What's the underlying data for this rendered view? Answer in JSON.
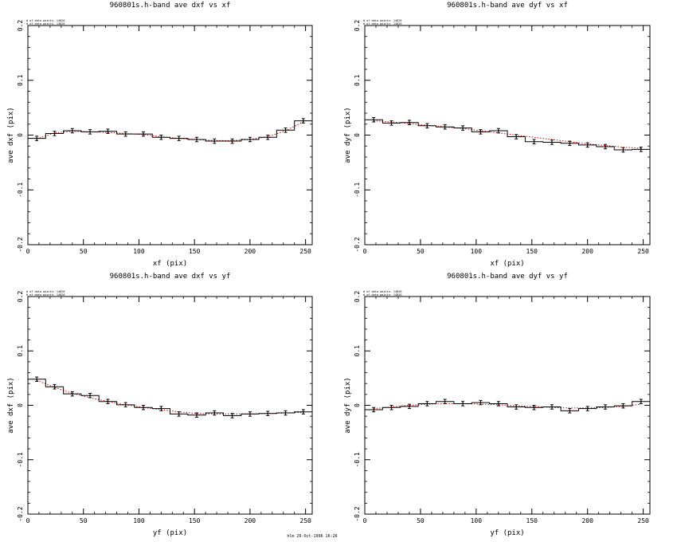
{
  "chart_data": [
    {
      "type": "histogram-step",
      "title": "960801s.h-band ave dxf vs xf",
      "xlabel": "xf (pix)",
      "ylabel": "ave dxf (pix)",
      "xlim": [
        0,
        256
      ],
      "ylim": [
        -0.2,
        0.2
      ],
      "xticks": [
        0,
        50,
        100,
        150,
        200,
        250
      ],
      "yticks": [
        -0.2,
        -0.1,
        0,
        0.1,
        0.2
      ],
      "notes": [
        "# of data points: 14826",
        "# of data points: 14826"
      ],
      "bin_width": 16,
      "values": [
        -0.006,
        0.003,
        0.008,
        0.006,
        0.007,
        0.002,
        0.002,
        -0.004,
        -0.006,
        -0.008,
        -0.011,
        -0.011,
        -0.008,
        -0.004,
        0.009,
        0.026
      ],
      "errors": [
        0.004,
        0.004,
        0.004,
        0.004,
        0.004,
        0.004,
        0.004,
        0.004,
        0.004,
        0.004,
        0.004,
        0.004,
        0.004,
        0.004,
        0.004,
        0.004
      ],
      "fit": [
        -0.007,
        0.004,
        0.007,
        0.006,
        0.005,
        0.003,
        0.001,
        -0.003,
        -0.006,
        -0.008,
        -0.01,
        -0.01,
        -0.008,
        -0.003,
        0.008,
        0.024
      ]
    },
    {
      "type": "histogram-step",
      "title": "960801s.h-band ave dyf vs xf",
      "xlabel": "xf (pix)",
      "ylabel": "ave dyf (pix)",
      "xlim": [
        0,
        256
      ],
      "ylim": [
        -0.2,
        0.2
      ],
      "xticks": [
        0,
        50,
        100,
        150,
        200,
        250
      ],
      "yticks": [
        -0.2,
        -0.1,
        0,
        0.1,
        0.2
      ],
      "notes": [
        "# of data points: 14826",
        "# of data points: 14826"
      ],
      "bin_width": 16,
      "values": [
        0.028,
        0.022,
        0.023,
        0.017,
        0.015,
        0.013,
        0.006,
        0.008,
        -0.003,
        -0.012,
        -0.013,
        -0.015,
        -0.018,
        -0.021,
        -0.027,
        -0.026
      ],
      "errors": [
        0.004,
        0.004,
        0.004,
        0.004,
        0.004,
        0.004,
        0.004,
        0.004,
        0.004,
        0.004,
        0.004,
        0.004,
        0.004,
        0.004,
        0.004,
        0.004
      ],
      "fit": [
        0.026,
        0.024,
        0.021,
        0.018,
        0.015,
        0.012,
        0.008,
        0.004,
        0.0,
        -0.004,
        -0.008,
        -0.012,
        -0.016,
        -0.019,
        -0.022,
        -0.024
      ]
    },
    {
      "type": "histogram-step",
      "title": "960801s.h-band ave dxf vs yf",
      "xlabel": "yf (pix)",
      "ylabel": "ave dxf (pix)",
      "xlim": [
        0,
        256
      ],
      "ylim": [
        -0.2,
        0.2
      ],
      "xticks": [
        0,
        50,
        100,
        150,
        200,
        250
      ],
      "yticks": [
        -0.2,
        -0.1,
        0,
        0.1,
        0.2
      ],
      "notes": [
        "# of data points: 14826",
        "# of data points: 14826"
      ],
      "bin_width": 16,
      "values": [
        0.048,
        0.034,
        0.021,
        0.018,
        0.007,
        0.001,
        -0.004,
        -0.006,
        -0.016,
        -0.018,
        -0.014,
        -0.019,
        -0.016,
        -0.015,
        -0.014,
        -0.012
      ],
      "errors": [
        0.004,
        0.004,
        0.004,
        0.004,
        0.004,
        0.004,
        0.004,
        0.004,
        0.004,
        0.004,
        0.004,
        0.004,
        0.004,
        0.004,
        0.004,
        0.004
      ],
      "fit": [
        0.046,
        0.033,
        0.022,
        0.014,
        0.007,
        0.001,
        -0.004,
        -0.008,
        -0.012,
        -0.015,
        -0.016,
        -0.016,
        -0.016,
        -0.015,
        -0.014,
        -0.013
      ]
    },
    {
      "type": "histogram-step",
      "title": "960801s.h-band ave dyf vs yf",
      "xlabel": "yf (pix)",
      "ylabel": "ave dyf (pix)",
      "xlim": [
        0,
        256
      ],
      "ylim": [
        -0.2,
        0.2
      ],
      "xticks": [
        0,
        50,
        100,
        150,
        200,
        250
      ],
      "yticks": [
        -0.2,
        -0.1,
        0,
        0.1,
        0.2
      ],
      "notes": [
        "# of data points: 14826",
        "# of data points: 14826"
      ],
      "bin_width": 16,
      "values": [
        -0.008,
        -0.004,
        -0.002,
        0.003,
        0.007,
        0.003,
        0.005,
        0.003,
        -0.003,
        -0.004,
        -0.003,
        -0.01,
        -0.006,
        -0.003,
        -0.001,
        0.007
      ],
      "errors": [
        0.004,
        0.004,
        0.004,
        0.004,
        0.004,
        0.004,
        0.004,
        0.004,
        0.004,
        0.004,
        0.004,
        0.004,
        0.004,
        0.004,
        0.004,
        0.004
      ],
      "fit": [
        -0.006,
        -0.003,
        0.0,
        0.002,
        0.003,
        0.003,
        0.002,
        0.001,
        -0.001,
        -0.002,
        -0.004,
        -0.005,
        -0.005,
        -0.004,
        -0.002,
        0.002
      ]
    }
  ],
  "footer": {
    "stamp": "hlm 26-Oct-1996 16:26"
  },
  "colors": {
    "ink": "#000000",
    "fit": "#d40000",
    "background": "#ffffff"
  }
}
